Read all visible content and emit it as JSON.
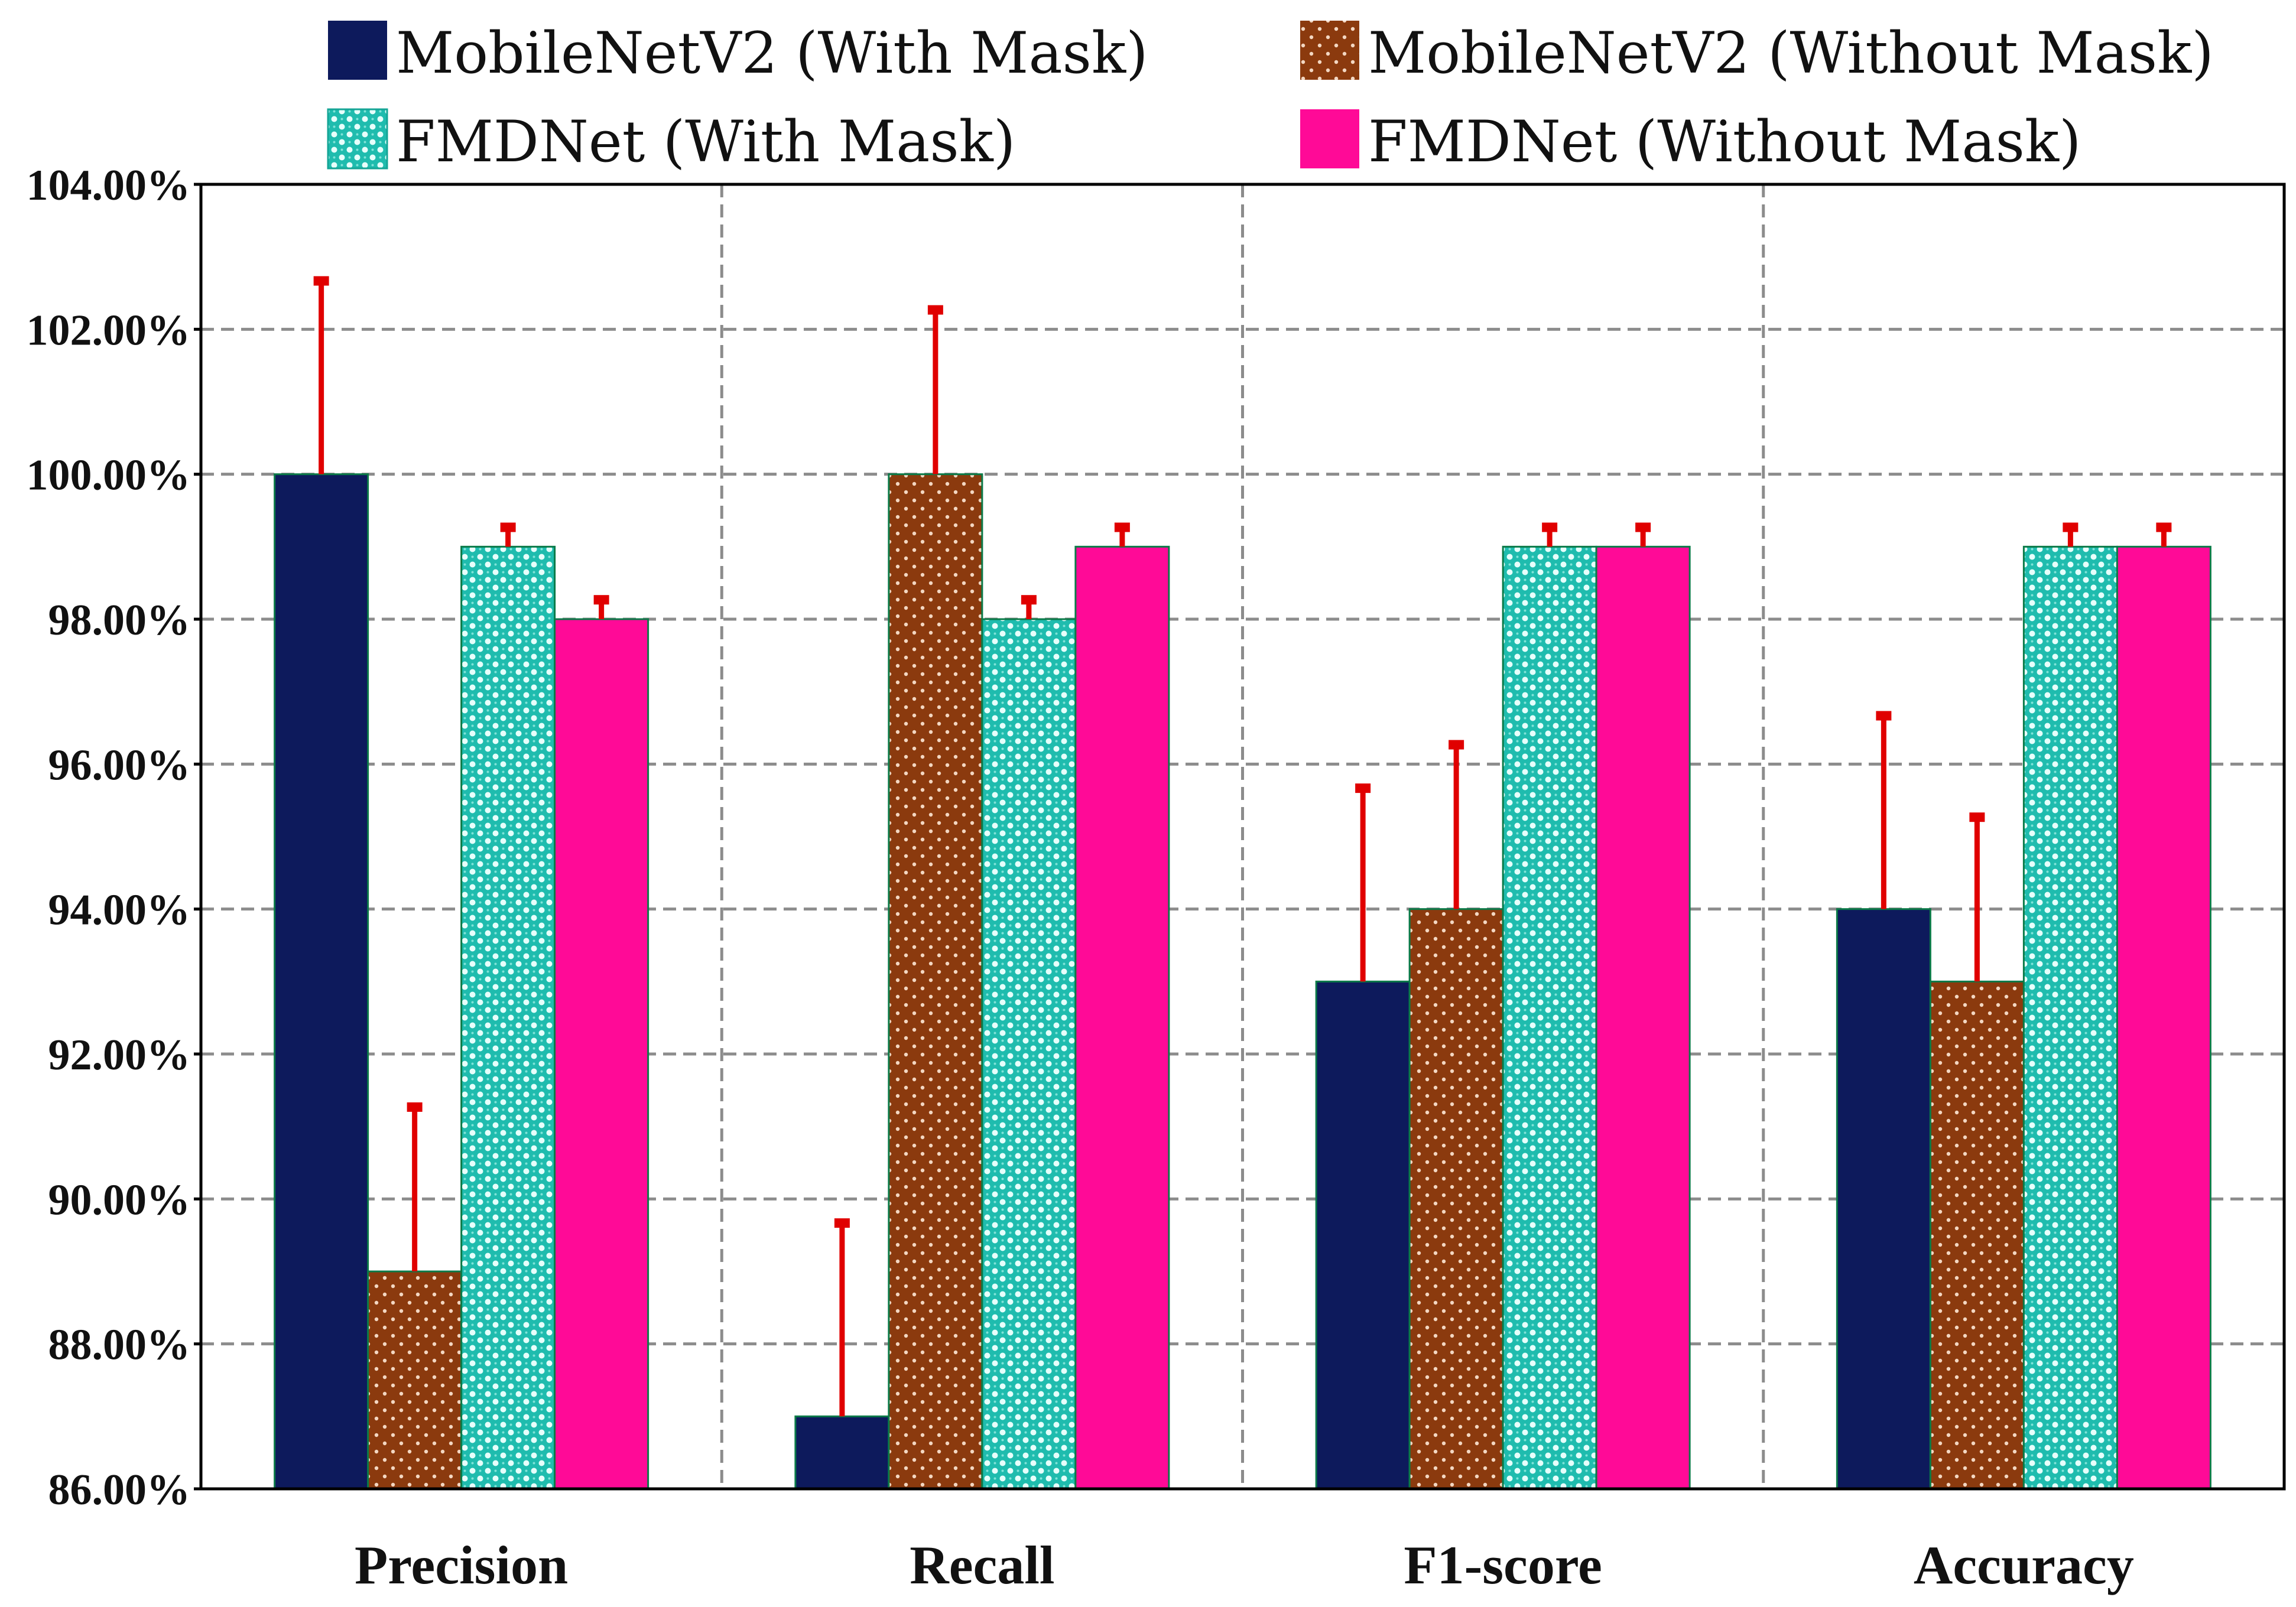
{
  "chart_data": {
    "type": "bar",
    "title": "",
    "xlabel": "",
    "ylabel": "",
    "categories": [
      "Precision",
      "Recall",
      "F1-score",
      "Accuracy"
    ],
    "ylim": [
      86,
      104
    ],
    "yticks": [
      86,
      88,
      90,
      92,
      94,
      96,
      98,
      100,
      102,
      104
    ],
    "ytick_labels": [
      "86.00%",
      "88.00%",
      "90.00%",
      "92.00%",
      "94.00%",
      "96.00%",
      "98.00%",
      "100.00%",
      "102.00%",
      "104.00%"
    ],
    "grid": true,
    "legend_position": "top",
    "error_bar_color": "#e00000",
    "series": [
      {
        "name": "MobileNetV2 (With Mask)",
        "color": "#0d1a5c",
        "pattern": "solid",
        "values": [
          100,
          87,
          93,
          94
        ],
        "error": [
          2.7,
          2.7,
          2.7,
          2.7
        ]
      },
      {
        "name": "MobileNetV2 (Without Mask)",
        "color": "#8b3a0e",
        "pattern": "dots",
        "values": [
          89,
          100,
          94,
          93
        ],
        "error": [
          2.3,
          2.3,
          2.3,
          2.3
        ]
      },
      {
        "name": "FMDNet (With Mask)",
        "color": "#2ec4b6",
        "pattern": "checker",
        "values": [
          99,
          98,
          99,
          99
        ],
        "error": [
          0.3,
          0.3,
          0.3,
          0.3
        ]
      },
      {
        "name": "FMDNet (Without Mask)",
        "color": "#ff0a97",
        "pattern": "solid",
        "values": [
          98,
          99,
          99,
          99
        ],
        "error": [
          0.3,
          0.3,
          0.3,
          0.3
        ]
      }
    ]
  }
}
